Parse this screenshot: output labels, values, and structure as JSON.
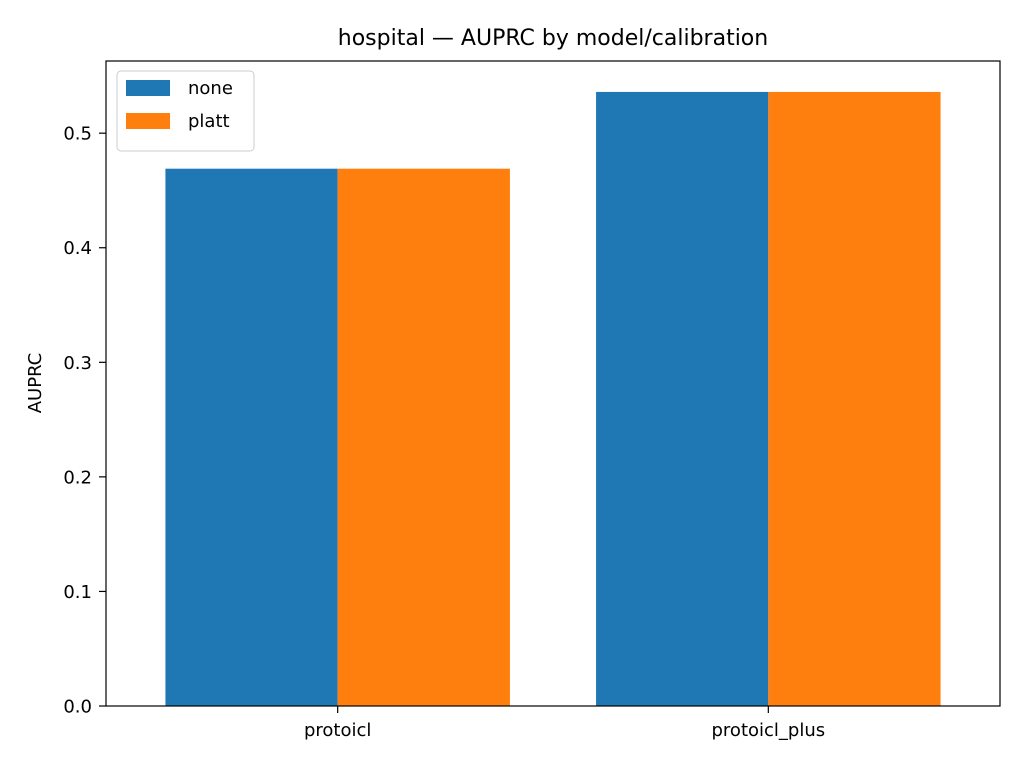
{
  "chart_data": {
    "type": "bar",
    "title": "hospital — AUPRC by model/calibration",
    "xlabel": "",
    "ylabel": "AUPRC",
    "categories": [
      "protoicl",
      "protoicl_plus"
    ],
    "series": [
      {
        "name": "none",
        "values": [
          0.469,
          0.536
        ],
        "color": "#1f77b4"
      },
      {
        "name": "platt",
        "values": [
          0.469,
          0.536
        ],
        "color": "#ff7f0e"
      }
    ],
    "ylim": [
      0,
      0.563
    ],
    "yticks": [
      0.0,
      0.1,
      0.2,
      0.3,
      0.4,
      0.5
    ],
    "ytick_labels": [
      "0.0",
      "0.1",
      "0.2",
      "0.3",
      "0.4",
      "0.5"
    ],
    "grid": false,
    "legend_position": "top-left"
  }
}
